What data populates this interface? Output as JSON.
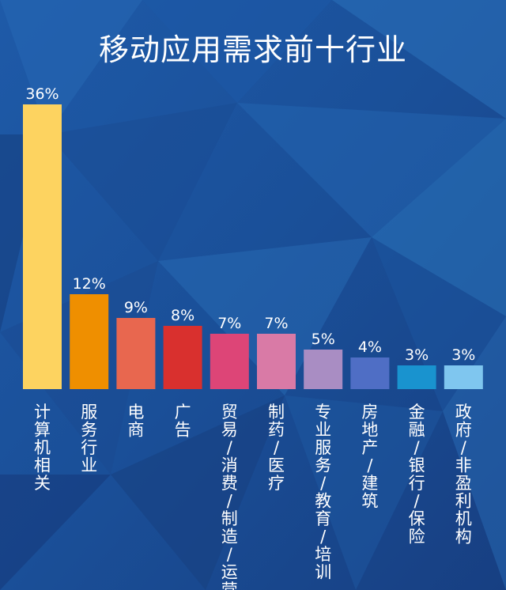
{
  "chart_data": {
    "type": "bar",
    "title": "移动应用需求前十行业",
    "xlabel": "",
    "ylabel": "",
    "ylim": [
      0,
      36
    ],
    "grid": false,
    "legend": "none",
    "value_suffix": "%",
    "categories": [
      "计算机相关",
      "服务行业",
      "电商",
      "广告",
      "贸易/消费/制造/运营",
      "制药/医疗",
      "专业服务/教育/培训",
      "房地产/建筑",
      "金融/银行/保险",
      "政府/非盈利机构"
    ],
    "values": [
      36,
      12,
      9,
      8,
      7,
      7,
      5,
      4,
      3,
      3
    ],
    "value_labels": [
      "36%",
      "12%",
      "9%",
      "8%",
      "7%",
      "7%",
      "5%",
      "4%",
      "3%",
      "3%"
    ],
    "colors": [
      "#fdd360",
      "#ef8f00",
      "#e8674f",
      "#d9302e",
      "#dd4577",
      "#d97aa6",
      "#a98dc3",
      "#4f6ec5",
      "#1993cf",
      "#7fc6ef"
    ]
  }
}
